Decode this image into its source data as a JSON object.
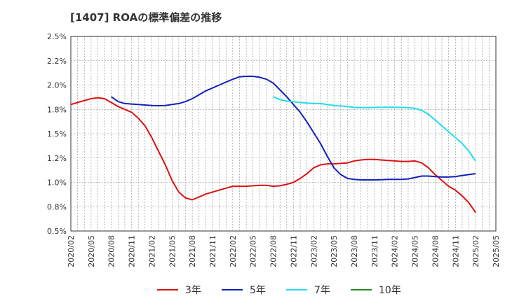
{
  "chart_data": {
    "type": "line",
    "title": "[1407]  ROAの標準偏差の推移",
    "xlabel": "",
    "ylabel": "",
    "ylim": [
      0.5,
      2.5
    ],
    "y_ticks": [
      "0.5%",
      "0.8%",
      "1.0%",
      "1.2%",
      "1.5%",
      "1.8%",
      "2.0%",
      "2.2%",
      "2.5%"
    ],
    "x_ticks": [
      "2020/02",
      "2020/05",
      "2020/08",
      "2020/11",
      "2021/02",
      "2021/05",
      "2021/08",
      "2021/11",
      "2022/02",
      "2022/05",
      "2022/08",
      "2022/11",
      "2023/02",
      "2023/05",
      "2023/08",
      "2023/11",
      "2024/02",
      "2024/05",
      "2024/08",
      "2024/11",
      "2025/02",
      "2025/05"
    ],
    "grid": true,
    "legend_position": "bottom",
    "series": [
      {
        "name": "3年",
        "color": "#dd1111",
        "x": [
          "2020/02",
          "2020/03",
          "2020/04",
          "2020/05",
          "2020/06",
          "2020/07",
          "2020/08",
          "2020/09",
          "2020/10",
          "2020/11",
          "2020/12",
          "2021/01",
          "2021/02",
          "2021/03",
          "2021/04",
          "2021/05",
          "2021/06",
          "2021/07",
          "2021/08",
          "2021/09",
          "2021/10",
          "2021/11",
          "2021/12",
          "2022/01",
          "2022/02",
          "2022/03",
          "2022/04",
          "2022/05",
          "2022/06",
          "2022/07",
          "2022/08",
          "2022/09",
          "2022/10",
          "2022/11",
          "2022/12",
          "2023/01",
          "2023/02",
          "2023/03",
          "2023/04",
          "2023/05",
          "2023/06",
          "2023/07",
          "2023/08",
          "2023/09",
          "2023/10",
          "2023/11",
          "2023/12",
          "2024/01",
          "2024/02",
          "2024/03",
          "2024/04",
          "2024/05",
          "2024/06",
          "2024/07",
          "2024/08",
          "2024/09",
          "2024/10",
          "2024/11",
          "2024/12",
          "2025/01",
          "2025/02"
        ],
        "values": [
          1.8,
          1.82,
          1.84,
          1.86,
          1.87,
          1.86,
          1.82,
          1.78,
          1.75,
          1.72,
          1.66,
          1.58,
          1.46,
          1.32,
          1.18,
          1.02,
          0.9,
          0.84,
          0.82,
          0.85,
          0.88,
          0.9,
          0.92,
          0.94,
          0.96,
          0.96,
          0.96,
          0.965,
          0.97,
          0.97,
          0.96,
          0.965,
          0.98,
          1.0,
          1.04,
          1.09,
          1.15,
          1.18,
          1.19,
          1.19,
          1.195,
          1.2,
          1.22,
          1.23,
          1.235,
          1.235,
          1.23,
          1.225,
          1.22,
          1.215,
          1.215,
          1.22,
          1.2,
          1.15,
          1.08,
          1.02,
          0.96,
          0.92,
          0.86,
          0.79,
          0.69
        ]
      },
      {
        "name": "5年",
        "color": "#1122bb",
        "x": [
          "2020/08",
          "2020/09",
          "2020/10",
          "2020/11",
          "2020/12",
          "2021/01",
          "2021/02",
          "2021/03",
          "2021/04",
          "2021/05",
          "2021/06",
          "2021/07",
          "2021/08",
          "2021/09",
          "2021/10",
          "2021/11",
          "2021/12",
          "2022/01",
          "2022/02",
          "2022/03",
          "2022/04",
          "2022/05",
          "2022/06",
          "2022/07",
          "2022/08",
          "2022/09",
          "2022/10",
          "2022/11",
          "2022/12",
          "2023/01",
          "2023/02",
          "2023/03",
          "2023/04",
          "2023/05",
          "2023/06",
          "2023/07",
          "2023/08",
          "2023/09",
          "2023/10",
          "2023/11",
          "2023/12",
          "2024/01",
          "2024/02",
          "2024/03",
          "2024/04",
          "2024/05",
          "2024/06",
          "2024/07",
          "2024/08",
          "2024/09",
          "2024/10",
          "2024/11",
          "2024/12",
          "2025/01",
          "2025/02"
        ],
        "values": [
          1.88,
          1.83,
          1.81,
          1.805,
          1.8,
          1.795,
          1.79,
          1.788,
          1.79,
          1.8,
          1.81,
          1.83,
          1.86,
          1.9,
          1.94,
          1.97,
          2.0,
          2.03,
          2.06,
          2.085,
          2.09,
          2.09,
          2.08,
          2.06,
          2.02,
          1.95,
          1.88,
          1.8,
          1.72,
          1.62,
          1.51,
          1.4,
          1.27,
          1.15,
          1.08,
          1.04,
          1.03,
          1.025,
          1.025,
          1.025,
          1.027,
          1.03,
          1.03,
          1.03,
          1.035,
          1.05,
          1.065,
          1.065,
          1.06,
          1.055,
          1.055,
          1.06,
          1.07,
          1.08,
          1.09
        ]
      },
      {
        "name": "7年",
        "color": "#22ddee",
        "x": [
          "2022/08",
          "2022/09",
          "2022/10",
          "2022/11",
          "2022/12",
          "2023/01",
          "2023/02",
          "2023/03",
          "2023/04",
          "2023/05",
          "2023/06",
          "2023/07",
          "2023/08",
          "2023/09",
          "2023/10",
          "2023/11",
          "2023/12",
          "2024/01",
          "2024/02",
          "2024/03",
          "2024/04",
          "2024/05",
          "2024/06",
          "2024/07",
          "2024/08",
          "2024/09",
          "2024/10",
          "2024/11",
          "2024/12",
          "2025/01",
          "2025/02"
        ],
        "values": [
          1.88,
          1.85,
          1.835,
          1.83,
          1.82,
          1.815,
          1.81,
          1.81,
          1.8,
          1.79,
          1.785,
          1.78,
          1.77,
          1.768,
          1.768,
          1.77,
          1.772,
          1.772,
          1.772,
          1.77,
          1.768,
          1.76,
          1.74,
          1.7,
          1.64,
          1.58,
          1.52,
          1.46,
          1.4,
          1.32,
          1.22
        ]
      },
      {
        "name": "10年",
        "color": "#228822",
        "x": [],
        "values": []
      }
    ]
  }
}
